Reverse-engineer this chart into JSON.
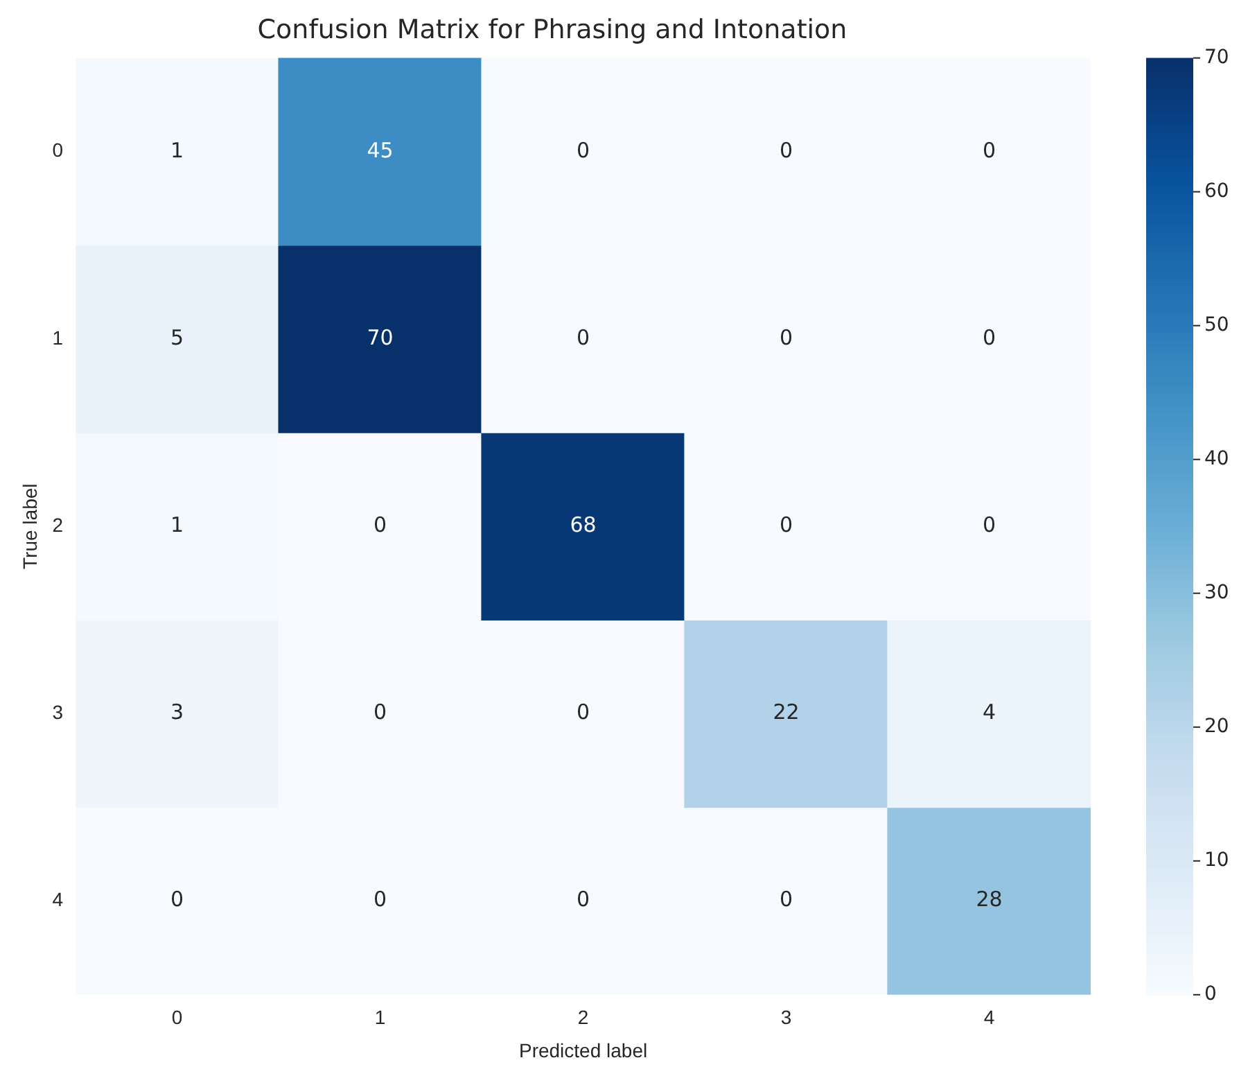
{
  "chart_data": {
    "type": "heatmap",
    "title": "Confusion Matrix for Phrasing and Intonation",
    "xlabel": "Predicted label",
    "ylabel": "True label",
    "categories": [
      "0",
      "1",
      "2",
      "3",
      "4"
    ],
    "y_categories": [
      "0",
      "1",
      "2",
      "3",
      "4"
    ],
    "cells": [
      [
        1,
        45,
        0,
        0,
        0
      ],
      [
        5,
        70,
        0,
        0,
        0
      ],
      [
        1,
        0,
        68,
        0,
        0
      ],
      [
        3,
        0,
        0,
        22,
        4
      ],
      [
        0,
        0,
        0,
        0,
        28
      ]
    ],
    "clim": [
      0,
      70
    ],
    "cticks": [
      0,
      10,
      20,
      30,
      40,
      50,
      60,
      70
    ],
    "data_labels": true
  }
}
